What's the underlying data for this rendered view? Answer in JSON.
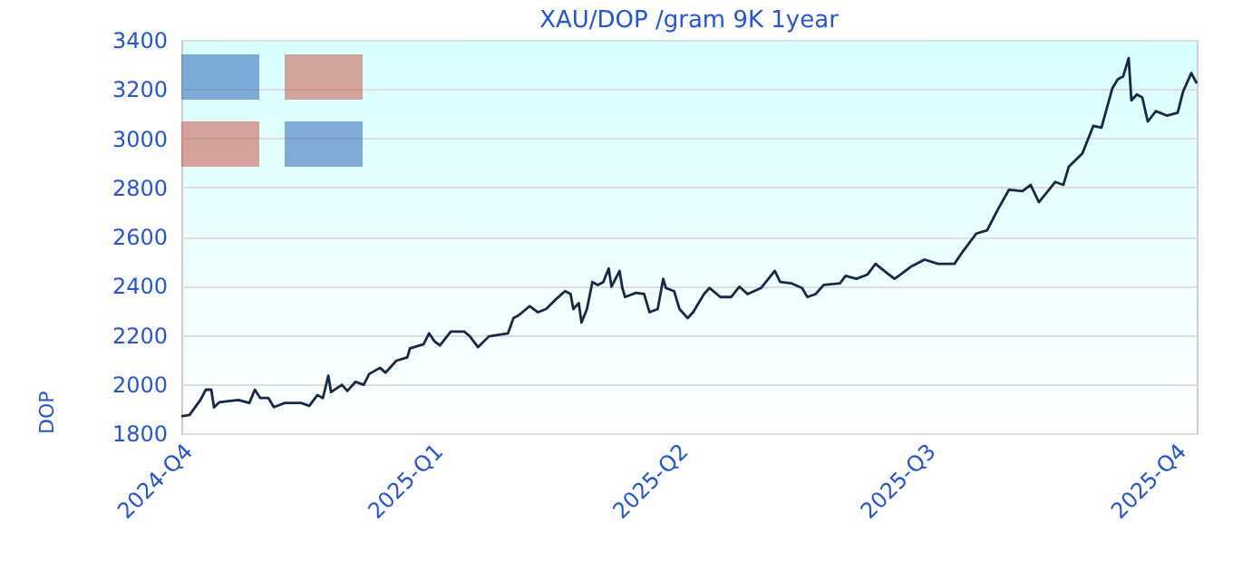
{
  "chart_data": {
    "type": "line",
    "title": "XAU/DOP /gram 9K 1year",
    "ylabel": "DOP",
    "x": [
      "2024-10-01",
      "2024-10-04",
      "2024-10-08",
      "2024-10-10",
      "2024-10-12",
      "2024-10-13",
      "2024-10-15",
      "2024-10-22",
      "2024-10-26",
      "2024-10-28",
      "2024-10-30",
      "2024-11-02",
      "2024-11-04",
      "2024-11-08",
      "2024-11-14",
      "2024-11-17",
      "2024-11-20",
      "2024-11-22",
      "2024-11-24",
      "2024-11-25",
      "2024-11-29",
      "2024-12-01",
      "2024-12-04",
      "2024-12-07",
      "2024-12-09",
      "2024-12-13",
      "2024-12-15",
      "2024-12-19",
      "2024-12-23",
      "2024-12-24",
      "2024-12-29",
      "2024-12-31",
      "2025-01-02",
      "2025-01-04",
      "2025-01-08",
      "2025-01-13",
      "2025-01-15",
      "2025-01-18",
      "2025-01-22",
      "2025-01-29",
      "2025-01-31",
      "2025-02-02",
      "2025-02-06",
      "2025-02-09",
      "2025-02-12",
      "2025-02-16",
      "2025-02-19",
      "2025-02-21",
      "2025-02-22",
      "2025-02-24",
      "2025-02-25",
      "2025-02-27",
      "2025-03-01",
      "2025-03-03",
      "2025-03-05",
      "2025-03-07",
      "2025-03-08",
      "2025-03-11",
      "2025-03-12",
      "2025-03-13",
      "2025-03-17",
      "2025-03-20",
      "2025-03-22",
      "2025-03-25",
      "2025-03-27",
      "2025-03-28",
      "2025-03-31",
      "2025-04-02",
      "2025-04-05",
      "2025-04-07",
      "2025-04-11",
      "2025-04-13",
      "2025-04-17",
      "2025-04-21",
      "2025-04-24",
      "2025-04-27",
      "2025-05-02",
      "2025-05-07",
      "2025-05-09",
      "2025-05-13",
      "2025-05-17",
      "2025-05-19",
      "2025-05-22",
      "2025-05-25",
      "2025-05-31",
      "2025-06-02",
      "2025-06-06",
      "2025-06-10",
      "2025-06-13",
      "2025-06-18",
      "2025-06-20",
      "2025-06-23",
      "2025-06-26",
      "2025-07-01",
      "2025-07-06",
      "2025-07-12",
      "2025-07-15",
      "2025-07-20",
      "2025-07-24",
      "2025-07-28",
      "2025-08-01",
      "2025-08-06",
      "2025-08-09",
      "2025-08-12",
      "2025-08-15",
      "2025-08-18",
      "2025-08-21",
      "2025-08-23",
      "2025-08-28",
      "2025-09-01",
      "2025-09-04",
      "2025-09-08",
      "2025-09-10",
      "2025-09-12",
      "2025-09-14",
      "2025-09-15",
      "2025-09-17",
      "2025-09-19",
      "2025-09-21",
      "2025-09-24",
      "2025-09-28",
      "2025-10-02",
      "2025-10-04",
      "2025-10-07",
      "2025-10-09"
    ],
    "series": [
      {
        "color": "#14284b",
        "values": [
          1869,
          1874,
          1935,
          1977,
          1977,
          1905,
          1926,
          1935,
          1923,
          1977,
          1943,
          1943,
          1906,
          1923,
          1923,
          1911,
          1955,
          1943,
          2034,
          1967,
          1997,
          1972,
          2009,
          1997,
          2041,
          2066,
          2046,
          2095,
          2108,
          2145,
          2162,
          2206,
          2174,
          2157,
          2213,
          2213,
          2194,
          2150,
          2194,
          2206,
          2268,
          2280,
          2317,
          2292,
          2305,
          2349,
          2378,
          2366,
          2305,
          2329,
          2250,
          2305,
          2415,
          2403,
          2415,
          2470,
          2396,
          2460,
          2391,
          2354,
          2371,
          2366,
          2292,
          2305,
          2428,
          2391,
          2378,
          2305,
          2268,
          2292,
          2366,
          2391,
          2354,
          2354,
          2396,
          2366,
          2391,
          2460,
          2415,
          2410,
          2391,
          2354,
          2366,
          2403,
          2410,
          2440,
          2428,
          2445,
          2489,
          2445,
          2428,
          2452,
          2477,
          2506,
          2489,
          2489,
          2538,
          2612,
          2625,
          2711,
          2790,
          2785,
          2810,
          2740,
          2780,
          2822,
          2810,
          2884,
          2938,
          3050,
          3043,
          3203,
          3240,
          3252,
          3326,
          3154,
          3178,
          3166,
          3068,
          3110,
          3092,
          3104,
          3190,
          3265,
          3223
        ]
      }
    ],
    "xlim": [
      "2024-10-01",
      "2025-10-09"
    ],
    "xticks": [
      {
        "value": "2024-10-01",
        "label": "2024-Q4"
      },
      {
        "value": "2025-01-01",
        "label": "2025-Q1"
      },
      {
        "value": "2025-04-01",
        "label": "2025-Q2"
      },
      {
        "value": "2025-07-01",
        "label": "2025-Q3"
      },
      {
        "value": "2025-10-01",
        "label": "2025-Q4"
      }
    ],
    "ylim": [
      1800,
      3400
    ],
    "yticks": [
      1800,
      2000,
      2200,
      2400,
      2600,
      2800,
      3000,
      3200,
      3400
    ],
    "grid": "y",
    "line_style": "solid"
  }
}
